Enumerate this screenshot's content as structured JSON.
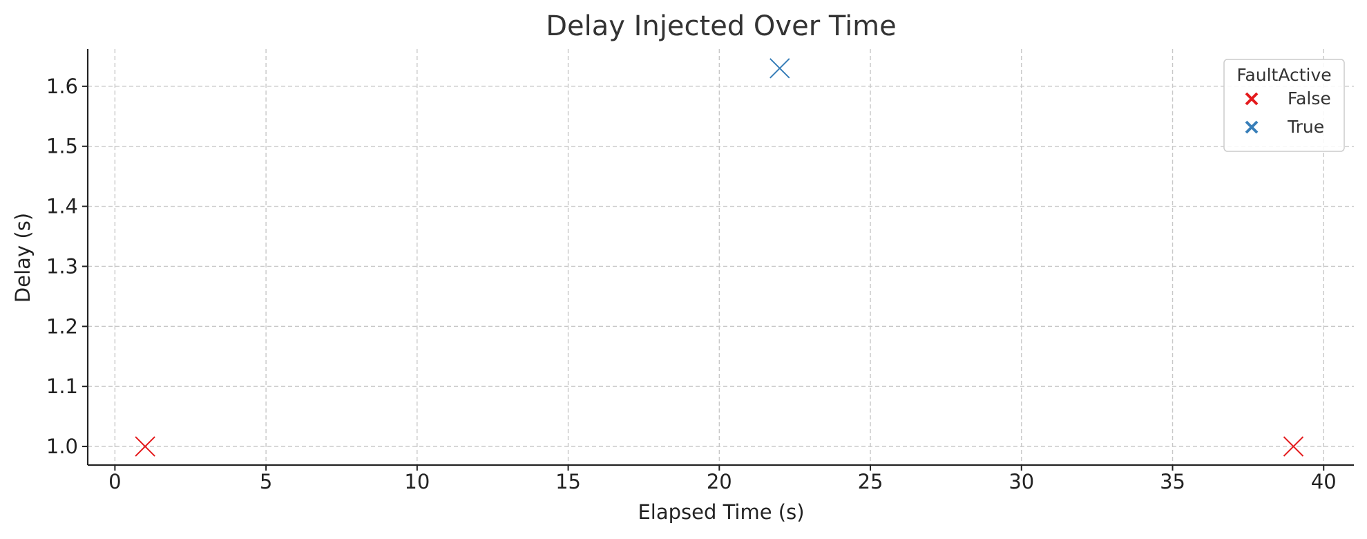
{
  "chart_data": {
    "type": "scatter",
    "title": "Delay Injected Over Time",
    "xlabel": "Elapsed Time (s)",
    "ylabel": "Delay (s)",
    "xlim": [
      -0.9,
      41
    ],
    "ylim": [
      0.969,
      1.662
    ],
    "x_ticks": [
      0,
      5,
      10,
      15,
      20,
      25,
      30,
      35,
      40
    ],
    "x_tick_labels": [
      "0",
      "5",
      "10",
      "15",
      "20",
      "25",
      "30",
      "35",
      "40"
    ],
    "y_ticks": [
      1.0,
      1.1,
      1.2,
      1.3,
      1.4,
      1.5,
      1.6
    ],
    "y_tick_labels": [
      "1.0",
      "1.1",
      "1.2",
      "1.3",
      "1.4",
      "1.5",
      "1.6"
    ],
    "grid": true,
    "marker": "x",
    "legend": {
      "title": "FaultActive",
      "placement": "top-right",
      "entries": [
        {
          "label": "False",
          "color": "#e41a1c"
        },
        {
          "label": "True",
          "color": "#377eb8"
        }
      ]
    },
    "series": [
      {
        "name": "False",
        "color": "#e41a1c",
        "points": [
          {
            "x": 1,
            "y": 1.0
          },
          {
            "x": 39,
            "y": 1.0
          }
        ]
      },
      {
        "name": "True",
        "color": "#377eb8",
        "points": [
          {
            "x": 22,
            "y": 1.63
          }
        ]
      }
    ]
  }
}
